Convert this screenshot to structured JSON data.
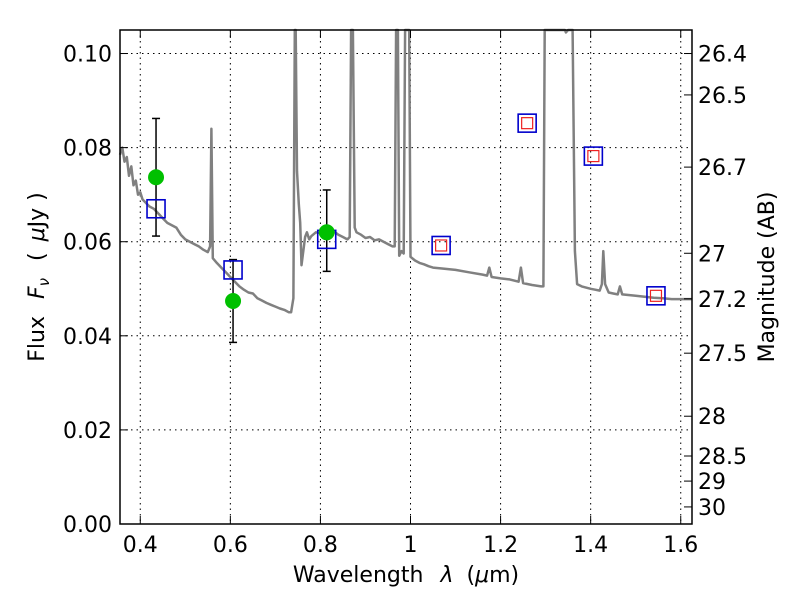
{
  "chart_data": {
    "type": "line",
    "xlabel": "Wavelength",
    "xlabel_symbol": "λ",
    "xlabel_unit_open": "(",
    "xlabel_unit_mu": "μ",
    "xlabel_unit_rest": "m)",
    "ylabel": "Flux",
    "ylabel_symbol": "F",
    "ylabel_subscript": "ν",
    "ylabel_unit_open": "(",
    "ylabel_unit_mu": "μ",
    "ylabel_unit_rest": "Jy )",
    "y2label": "Magnitude (AB)",
    "xlim": [
      0.355,
      1.625
    ],
    "ylim": [
      0.0,
      0.105
    ],
    "grid": true,
    "x_ticks": [
      "0.4",
      "0.6",
      "0.8",
      "1",
      "1.2",
      "1.4",
      "1.6"
    ],
    "x_tick_values": [
      0.4,
      0.6,
      0.8,
      1.0,
      1.2,
      1.4,
      1.6
    ],
    "y_ticks": [
      "0.00",
      "0.02",
      "0.04",
      "0.06",
      "0.08",
      "0.10"
    ],
    "y_tick_values": [
      0.0,
      0.02,
      0.04,
      0.06,
      0.08,
      0.1
    ],
    "mag_ticks": [
      {
        "label": "26.4",
        "mag": 26.4
      },
      {
        "label": "26.5",
        "mag": 26.5
      },
      {
        "label": "26.7",
        "mag": 26.7
      },
      {
        "label": "27",
        "mag": 27.0
      },
      {
        "label": "27.2",
        "mag": 27.2
      },
      {
        "label": "27.5",
        "mag": 27.5
      },
      {
        "label": "28",
        "mag": 28.0
      },
      {
        "label": "28.5",
        "mag": 28.5
      },
      {
        "label": "29",
        "mag": 29.0
      },
      {
        "label": "30",
        "mag": 30.0
      }
    ],
    "series": [
      {
        "kind": "model-spectrum",
        "color": "#808080",
        "points": [
          [
            0.355,
            0.0785
          ],
          [
            0.36,
            0.08
          ],
          [
            0.365,
            0.077
          ],
          [
            0.37,
            0.078
          ],
          [
            0.375,
            0.074
          ],
          [
            0.38,
            0.076
          ],
          [
            0.385,
            0.072
          ],
          [
            0.39,
            0.073
          ],
          [
            0.395,
            0.07
          ],
          [
            0.4,
            0.0705
          ],
          [
            0.405,
            0.069
          ],
          [
            0.41,
            0.0685
          ],
          [
            0.42,
            0.0675
          ],
          [
            0.43,
            0.067
          ],
          [
            0.44,
            0.066
          ],
          [
            0.45,
            0.065
          ],
          [
            0.46,
            0.064
          ],
          [
            0.47,
            0.0635
          ],
          [
            0.48,
            0.063
          ],
          [
            0.49,
            0.0615
          ],
          [
            0.5,
            0.0605
          ],
          [
            0.51,
            0.06
          ],
          [
            0.52,
            0.0595
          ],
          [
            0.53,
            0.059
          ],
          [
            0.54,
            0.0583
          ],
          [
            0.55,
            0.0578
          ],
          [
            0.555,
            0.059
          ],
          [
            0.558,
            0.084
          ],
          [
            0.561,
            0.0565
          ],
          [
            0.57,
            0.0555
          ],
          [
            0.58,
            0.0545
          ],
          [
            0.59,
            0.0535
          ],
          [
            0.6,
            0.0525
          ],
          [
            0.61,
            0.0515
          ],
          [
            0.62,
            0.0505
          ],
          [
            0.63,
            0.0498
          ],
          [
            0.64,
            0.0492
          ],
          [
            0.65,
            0.049
          ],
          [
            0.66,
            0.048
          ],
          [
            0.67,
            0.0475
          ],
          [
            0.68,
            0.047
          ],
          [
            0.69,
            0.0466
          ],
          [
            0.7,
            0.0462
          ],
          [
            0.71,
            0.0458
          ],
          [
            0.72,
            0.0455
          ],
          [
            0.73,
            0.045
          ],
          [
            0.735,
            0.045
          ],
          [
            0.74,
            0.048
          ],
          [
            0.743,
            0.105
          ],
          [
            0.745,
            0.105
          ],
          [
            0.748,
            0.075
          ],
          [
            0.752,
            0.068
          ],
          [
            0.755,
            0.064
          ],
          [
            0.758,
            0.055
          ],
          [
            0.762,
            0.058
          ],
          [
            0.766,
            0.061
          ],
          [
            0.77,
            0.062
          ],
          [
            0.775,
            0.0605
          ],
          [
            0.78,
            0.0612
          ],
          [
            0.79,
            0.062
          ],
          [
            0.8,
            0.0618
          ],
          [
            0.81,
            0.0615
          ],
          [
            0.82,
            0.0612
          ],
          [
            0.83,
            0.0622
          ],
          [
            0.84,
            0.0615
          ],
          [
            0.85,
            0.061
          ],
          [
            0.86,
            0.0605
          ],
          [
            0.865,
            0.061
          ],
          [
            0.868,
            0.105
          ],
          [
            0.872,
            0.105
          ],
          [
            0.876,
            0.063
          ],
          [
            0.88,
            0.062
          ],
          [
            0.89,
            0.0615
          ],
          [
            0.9,
            0.0608
          ],
          [
            0.91,
            0.061
          ],
          [
            0.92,
            0.0603
          ],
          [
            0.93,
            0.0605
          ],
          [
            0.94,
            0.06
          ],
          [
            0.95,
            0.0595
          ],
          [
            0.96,
            0.059
          ],
          [
            0.965,
            0.059
          ],
          [
            0.968,
            0.105
          ],
          [
            0.972,
            0.105
          ],
          [
            0.975,
            0.057
          ],
          [
            0.98,
            0.058
          ],
          [
            0.985,
            0.0575
          ],
          [
            0.988,
            0.105
          ],
          [
            0.997,
            0.105
          ],
          [
            1.0,
            0.0568
          ],
          [
            1.01,
            0.056
          ],
          [
            1.02,
            0.0555
          ],
          [
            1.03,
            0.0552
          ],
          [
            1.04,
            0.0548
          ],
          [
            1.05,
            0.0545
          ],
          [
            1.07,
            0.0543
          ],
          [
            1.1,
            0.054
          ],
          [
            1.13,
            0.0535
          ],
          [
            1.16,
            0.053
          ],
          [
            1.17,
            0.0528
          ],
          [
            1.175,
            0.0545
          ],
          [
            1.18,
            0.0525
          ],
          [
            1.2,
            0.0522
          ],
          [
            1.22,
            0.052
          ],
          [
            1.24,
            0.0515
          ],
          [
            1.245,
            0.0545
          ],
          [
            1.25,
            0.0512
          ],
          [
            1.27,
            0.0508
          ],
          [
            1.29,
            0.0505
          ],
          [
            1.295,
            0.0505
          ],
          [
            1.298,
            0.105
          ],
          [
            1.305,
            0.105
          ],
          [
            1.31,
            0.105
          ],
          [
            1.315,
            0.105
          ],
          [
            1.33,
            0.105
          ],
          [
            1.343,
            0.105
          ],
          [
            1.345,
            0.1045
          ],
          [
            1.35,
            0.105
          ],
          [
            1.36,
            0.105
          ],
          [
            1.365,
            0.058
          ],
          [
            1.37,
            0.051
          ],
          [
            1.38,
            0.0505
          ],
          [
            1.4,
            0.05
          ],
          [
            1.41,
            0.0498
          ],
          [
            1.42,
            0.0496
          ],
          [
            1.425,
            0.051
          ],
          [
            1.428,
            0.058
          ],
          [
            1.432,
            0.051
          ],
          [
            1.44,
            0.0492
          ],
          [
            1.45,
            0.049
          ],
          [
            1.46,
            0.0488
          ],
          [
            1.465,
            0.0505
          ],
          [
            1.47,
            0.0488
          ],
          [
            1.5,
            0.0485
          ],
          [
            1.52,
            0.0483
          ],
          [
            1.54,
            0.0481
          ],
          [
            1.56,
            0.048
          ],
          [
            1.58,
            0.0478
          ],
          [
            1.6,
            0.0478
          ],
          [
            1.625,
            0.0478
          ]
        ]
      },
      {
        "kind": "observed-flux",
        "color": "#00c000",
        "points": [
          {
            "x": 0.435,
            "y": 0.0737,
            "err_low": 0.0612,
            "err_high": 0.0862
          },
          {
            "x": 0.606,
            "y": 0.0474,
            "err_low": 0.0386,
            "err_high": 0.0562
          },
          {
            "x": 0.814,
            "y": 0.062,
            "err_low": 0.0537,
            "err_high": 0.071
          }
        ]
      },
      {
        "kind": "model-band-flux",
        "color": "#0000cc",
        "points": [
          {
            "x": 0.435,
            "y": 0.067
          },
          {
            "x": 0.606,
            "y": 0.054
          },
          {
            "x": 0.814,
            "y": 0.0605
          },
          {
            "x": 1.068,
            "y": 0.0592
          },
          {
            "x": 1.259,
            "y": 0.0852
          },
          {
            "x": 1.406,
            "y": 0.0782
          },
          {
            "x": 1.545,
            "y": 0.0485
          }
        ]
      },
      {
        "kind": "predicted-band-flux",
        "color": "#ee2222",
        "points": [
          {
            "x": 1.068,
            "y": 0.0592
          },
          {
            "x": 1.259,
            "y": 0.0852
          },
          {
            "x": 1.406,
            "y": 0.0782
          },
          {
            "x": 1.545,
            "y": 0.0485
          }
        ]
      }
    ]
  }
}
